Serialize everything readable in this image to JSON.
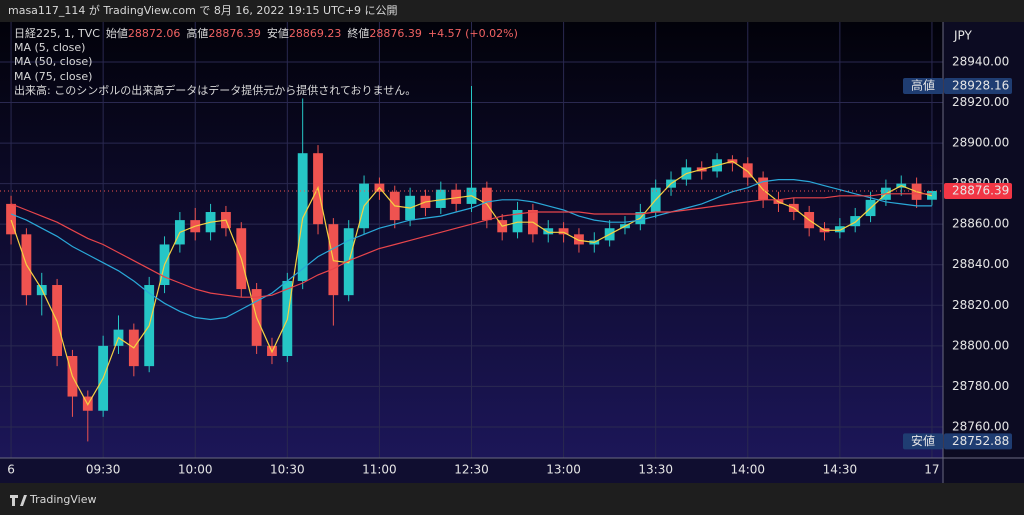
{
  "header": {
    "published": "masa117_114 が TradingView.com で 8月 16, 2022 19:15 UTC+9 に公開"
  },
  "chart_data": {
    "type": "candlestick",
    "symbol": "日経225, 1, TVC",
    "ohlc_labels": {
      "open_label": "始値",
      "open": 28872.06,
      "high_label": "高値",
      "high": 28876.39,
      "low_label": "安値",
      "low": 28869.23,
      "close_label": "終値",
      "close": 28876.39
    },
    "change": "+4.57 (+0.02%)",
    "volume_note": "出来高: このシンボルの出来高データはデータ提供元から提供されておりません。",
    "currency": "JPY",
    "up_color": "#26c6c6",
    "down_color": "#ef5350",
    "x": [
      0,
      5,
      10,
      15,
      20,
      25,
      30,
      35,
      40,
      45,
      50,
      55,
      60,
      65,
      70,
      75,
      80,
      85,
      90,
      95,
      100,
      105,
      110,
      115,
      120,
      125,
      130,
      135,
      140,
      145,
      150,
      155,
      160,
      165,
      170,
      175,
      180,
      185,
      190,
      195,
      200,
      205,
      210,
      215,
      220,
      225,
      230,
      235,
      240,
      245,
      250,
      255,
      260,
      265,
      270,
      275,
      280,
      285,
      290,
      295,
      300
    ],
    "open": [
      28870,
      28855,
      28825,
      28830,
      28795,
      28775,
      28768,
      28800,
      28808,
      28790,
      28830,
      28850,
      28862,
      28856,
      28866,
      28858,
      28828,
      28800,
      28795,
      28832,
      28895,
      28860,
      28825,
      28858,
      28880,
      28876,
      28862,
      28874,
      28868,
      28877,
      28870,
      28878,
      28862,
      28856,
      28867,
      28855,
      28858,
      28855,
      28850,
      28852,
      28858,
      28860,
      28866,
      28878,
      28882,
      28888,
      28886,
      28892,
      28890,
      28883,
      28872,
      28870,
      28866,
      28858,
      28856,
      28859,
      28864,
      28872,
      28878,
      28880,
      28872.06
    ],
    "high": [
      28874,
      28858,
      28836,
      28833,
      28798,
      28778,
      28805,
      28815,
      28811,
      28834,
      28854,
      28866,
      28868,
      28870,
      28869,
      28861,
      28831,
      28804,
      28836,
      28922,
      28899,
      28863,
      28862,
      28884,
      28883,
      28879,
      28878,
      28877,
      28881,
      28880,
      28928.16,
      28881,
      28865,
      28871,
      28870,
      28862,
      28861,
      28858,
      28856,
      28862,
      28864,
      28870,
      28882,
      28886,
      28892,
      28891,
      28895,
      28894,
      28893,
      28886,
      28876,
      28873,
      28869,
      28861,
      28863,
      28868,
      28876,
      28882,
      28884,
      28883,
      28876.39
    ],
    "low": [
      28850,
      28820,
      28815,
      28790,
      28765,
      28752.88,
      28765,
      28796,
      28785,
      28787,
      28826,
      28846,
      28852,
      28852,
      28854,
      28824,
      28796,
      28791,
      28792,
      28828,
      28855,
      28810,
      28822,
      28855,
      28872,
      28858,
      28859,
      28864,
      28865,
      28866,
      28866,
      28858,
      28852,
      28853,
      28851,
      28851,
      28851,
      28846,
      28846,
      28849,
      28855,
      28857,
      28863,
      28874,
      28879,
      28882,
      28883,
      28886,
      28879,
      28868,
      28866,
      28862,
      28854,
      28852,
      28853,
      28856,
      28861,
      28869,
      28874,
      28868,
      28869.23
    ],
    "close": [
      28855,
      28825,
      28830,
      28795,
      28775,
      28768,
      28800,
      28808,
      28790,
      28830,
      28850,
      28862,
      28856,
      28866,
      28858,
      28828,
      28800,
      28795,
      28832,
      28895,
      28860,
      28825,
      28858,
      28880,
      28876,
      28862,
      28874,
      28868,
      28877,
      28870,
      28878,
      28862,
      28856,
      28867,
      28855,
      28858,
      28855,
      28850,
      28852,
      28858,
      28860,
      28866,
      28878,
      28882,
      28888,
      28886,
      28892,
      28890,
      28883,
      28872,
      28870,
      28866,
      28858,
      28856,
      28859,
      28864,
      28872,
      28878,
      28880,
      28872,
      28876.39
    ],
    "series": [
      {
        "name": "MA (5, close)",
        "color": "#f5d142",
        "values": [
          28862,
          28840,
          28828,
          28812,
          28785,
          28771,
          28784,
          28804,
          28799,
          28810,
          28840,
          28856,
          28859,
          28861,
          28862,
          28843,
          28814,
          28797,
          28813,
          28863,
          28878,
          28842,
          28841,
          28869,
          28878,
          28869,
          28868,
          28871,
          28872,
          28873,
          28874,
          28870,
          28859,
          28861,
          28861,
          28856,
          28856,
          28852,
          28851,
          28855,
          28859,
          28863,
          28872,
          28880,
          28885,
          28887,
          28889,
          28891,
          28886,
          28877,
          28871,
          28868,
          28862,
          28857,
          28857,
          28861,
          28868,
          28875,
          28879,
          28876,
          28874
        ]
      },
      {
        "name": "MA (50, close)",
        "color": "#2aa8d8",
        "values": [
          28865,
          28862,
          28858,
          28854,
          28849,
          28845,
          28841,
          28837,
          28832,
          28826,
          28821,
          28817,
          28814,
          28813,
          28814,
          28818,
          28822,
          28826,
          28832,
          28838,
          28844,
          28848,
          28852,
          28855,
          28858,
          28860,
          28862,
          28863,
          28864,
          28866,
          28868,
          28871,
          28872,
          28872,
          28871,
          28869,
          28867,
          28864,
          28862,
          28861,
          28861,
          28862,
          28864,
          28866,
          28868,
          28870,
          28873,
          28876,
          28878,
          28881,
          28882,
          28882,
          28881,
          28879,
          28877,
          28875,
          28873,
          28871,
          28870,
          28869,
          28869
        ]
      },
      {
        "name": "MA (75, close)",
        "color": "#e8454b",
        "values": [
          28870,
          28867,
          28864,
          28861,
          28857,
          28853,
          28850,
          28846,
          28842,
          28838,
          28834,
          28831,
          28828,
          28826,
          28825,
          28824,
          28824,
          28825,
          28828,
          28831,
          28835,
          28838,
          28842,
          28845,
          28848,
          28850,
          28852,
          28854,
          28856,
          28858,
          28860,
          28862,
          28864,
          28865,
          28866,
          28866,
          28866,
          28866,
          28865,
          28865,
          28865,
          28865,
          28866,
          28866,
          28867,
          28868,
          28869,
          28870,
          28871,
          28872,
          28872,
          28873,
          28873,
          28873,
          28874,
          28874,
          28874,
          28875,
          28875,
          28875,
          28875
        ]
      }
    ],
    "xlim": [
      -3.6,
      303.6
    ],
    "xticks": [
      {
        "value": 0,
        "label": "6"
      },
      {
        "value": 30,
        "label": "09:30"
      },
      {
        "value": 60,
        "label": "10:00"
      },
      {
        "value": 90,
        "label": "10:30"
      },
      {
        "value": 120,
        "label": "11:00"
      },
      {
        "value": 150,
        "label": "12:30"
      },
      {
        "value": 180,
        "label": "13:00"
      },
      {
        "value": 210,
        "label": "13:30"
      },
      {
        "value": 240,
        "label": "14:00"
      },
      {
        "value": 270,
        "label": "14:30"
      },
      {
        "value": 300,
        "label": "17"
      }
    ],
    "ylim": [
      28744.7,
      28959.7
    ],
    "yticks": [
      {
        "value": 28760,
        "label": "28760.00"
      },
      {
        "value": 28780,
        "label": "28780.00"
      },
      {
        "value": 28800,
        "label": "28800.00"
      },
      {
        "value": 28820,
        "label": "28820.00"
      },
      {
        "value": 28840,
        "label": "28840.00"
      },
      {
        "value": 28860,
        "label": "28860.00"
      },
      {
        "value": 28880,
        "label": "28880.00"
      },
      {
        "value": 28900,
        "label": "28900.00"
      },
      {
        "value": 28920,
        "label": "28920.00"
      },
      {
        "value": 28940,
        "label": "28940.00"
      }
    ],
    "grid": true,
    "high_marker": {
      "label": "高値",
      "value": 28928.16
    },
    "low_marker": {
      "label": "安値",
      "value": 28752.88
    },
    "last_price": 28876.39
  },
  "footer": {
    "brand": "TradingView"
  }
}
